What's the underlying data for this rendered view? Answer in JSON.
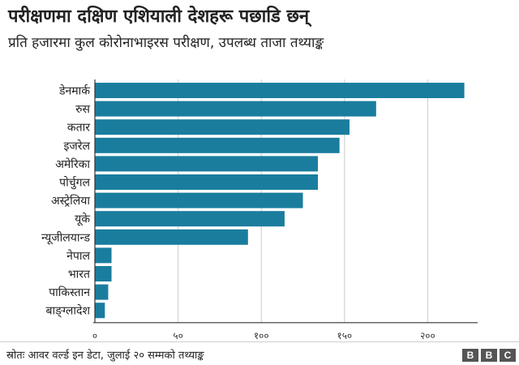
{
  "header": {
    "title": "परीक्षणमा दक्षिण एशियाली देशहरू पछाडि छन्",
    "subtitle": "प्रति हजारमा कुल कोरोनाभाइरस परीक्षण, उपलब्ध ताजा तथ्याङ्क"
  },
  "footer": {
    "source": "स्रोतः आवर वर्ल्ड इन डेटा, जुलाई २० सम्मको तथ्याङ्क",
    "logo": [
      "B",
      "B",
      "C"
    ]
  },
  "colors": {
    "bar": "#1a7d9e",
    "grid": "#cccccc",
    "axis": "#333333"
  },
  "chart_data": {
    "type": "bar",
    "orientation": "horizontal",
    "categories": [
      "डेनमार्क",
      "रुस",
      "कतार",
      "इजरेल",
      "अमेरिका",
      "पोर्चुगल",
      "अस्ट्रेलिया",
      "यूके",
      "न्यूजीलयान्ड",
      "नेपाल",
      "भारत",
      "पाकिस्तान",
      "बाङ्ग्लादेश"
    ],
    "values": [
      222,
      169,
      153,
      147,
      134,
      134,
      125,
      114,
      92,
      10,
      10,
      8,
      6
    ],
    "xlim": [
      0,
      230
    ],
    "ticks": [
      0,
      50,
      100,
      150,
      200
    ],
    "tick_labels": [
      "०",
      "५०",
      "१००",
      "१५०",
      "२००"
    ],
    "grid": true
  }
}
